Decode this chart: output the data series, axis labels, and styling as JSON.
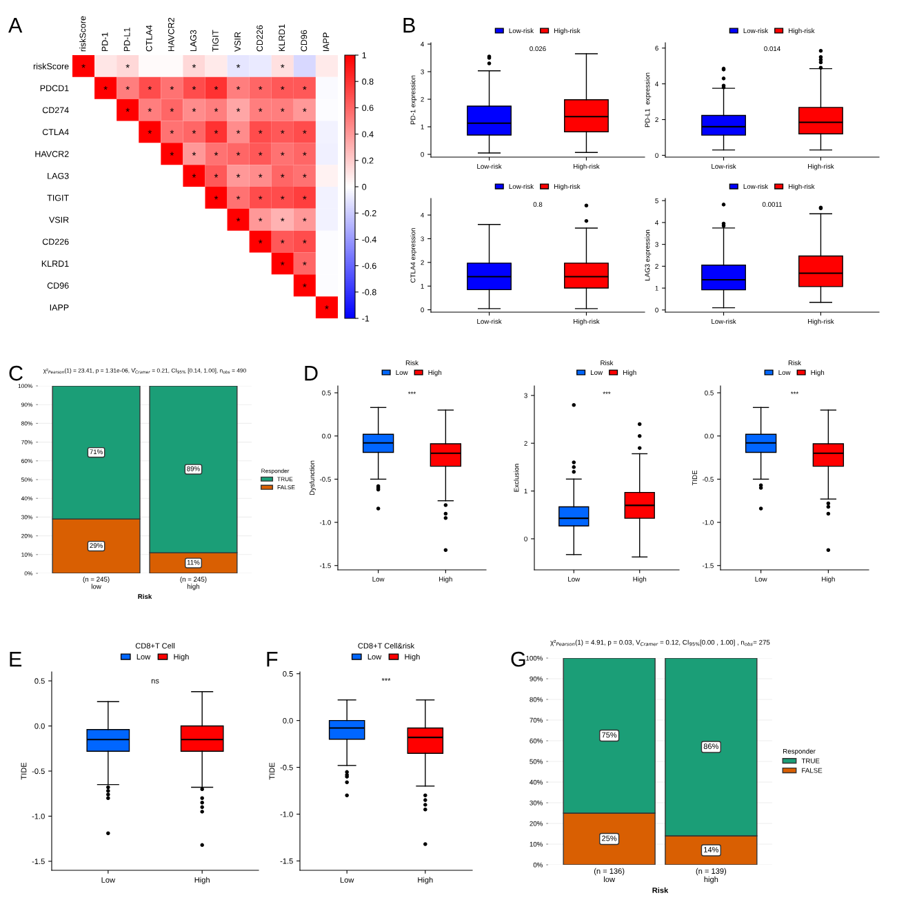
{
  "chart_data": [
    {
      "type": "heatmap",
      "title": "A",
      "categories": [
        "riskScore",
        "PD-1",
        "PD-L1",
        "CTLA4",
        "HAVCR2",
        "LAG3",
        "TIGIT",
        "VSIR",
        "CD226",
        "KLRD1",
        "CD96",
        "IAPP"
      ],
      "y_categories": [
        "riskScore",
        "PDCD1",
        "CD274",
        "CTLA4",
        "HAVCR2",
        "LAG3",
        "TIGIT",
        "VSIR",
        "CD226",
        "KLRD1",
        "CD96",
        "IAPP"
      ],
      "cells": [
        [
          1,
          0.1,
          0.15,
          0.02,
          0.02,
          0.15,
          0.08,
          -0.1,
          -0.08,
          0.12,
          -0.15,
          0.08
        ],
        [
          null,
          1,
          0.5,
          0.7,
          0.55,
          0.7,
          0.8,
          0.5,
          0.6,
          0.65,
          0.65,
          -0.02
        ],
        [
          null,
          null,
          1,
          0.5,
          0.6,
          0.45,
          0.5,
          0.35,
          0.5,
          0.5,
          0.4,
          -0.01
        ],
        [
          null,
          null,
          null,
          1,
          0.55,
          0.6,
          0.8,
          0.45,
          0.7,
          0.65,
          0.7,
          -0.05
        ],
        [
          null,
          null,
          null,
          null,
          1,
          0.4,
          0.55,
          0.6,
          0.65,
          0.55,
          0.6,
          -0.06
        ],
        [
          null,
          null,
          null,
          null,
          null,
          1,
          0.65,
          0.4,
          0.45,
          0.6,
          0.55,
          0.05
        ],
        [
          null,
          null,
          null,
          null,
          null,
          null,
          1,
          0.55,
          0.7,
          0.7,
          0.75,
          -0.05
        ],
        [
          null,
          null,
          null,
          null,
          null,
          null,
          null,
          1,
          0.4,
          0.3,
          0.4,
          -0.05
        ],
        [
          null,
          null,
          null,
          null,
          null,
          null,
          null,
          null,
          1,
          0.65,
          0.7,
          -0.01
        ],
        [
          null,
          null,
          null,
          null,
          null,
          null,
          null,
          null,
          null,
          1,
          0.6,
          -0.01
        ],
        [
          null,
          null,
          null,
          null,
          null,
          null,
          null,
          null,
          null,
          null,
          1,
          -0.01
        ],
        [
          null,
          null,
          null,
          null,
          null,
          null,
          null,
          null,
          null,
          null,
          null,
          1
        ]
      ],
      "cell_labels": [
        [
          "*",
          null,
          "*",
          null,
          null,
          "*",
          null,
          "*",
          null,
          "*",
          null,
          null
        ],
        [
          null,
          "*",
          "*",
          "*",
          "*",
          "*",
          "*",
          "*",
          "*",
          "*",
          "*",
          null
        ],
        [
          null,
          null,
          "*",
          "*",
          "*",
          "*",
          "*",
          "*",
          "*",
          "*",
          "*",
          null
        ],
        [
          null,
          null,
          null,
          "*",
          "*",
          "*",
          "*",
          "*",
          "*",
          "*",
          "*",
          null
        ],
        [
          null,
          null,
          null,
          null,
          "*",
          "*",
          "*",
          "*",
          "*",
          "*",
          "*",
          null
        ],
        [
          null,
          null,
          null,
          null,
          null,
          "*",
          "*",
          "*",
          "*",
          "*",
          "*",
          null
        ],
        [
          null,
          null,
          null,
          null,
          null,
          null,
          "*",
          "*",
          "*",
          "*",
          "*",
          null
        ],
        [
          null,
          null,
          null,
          null,
          null,
          null,
          null,
          "*",
          "*",
          "*",
          "*",
          null
        ],
        [
          null,
          null,
          null,
          null,
          null,
          null,
          null,
          null,
          "*",
          "*",
          "*",
          null
        ],
        [
          null,
          null,
          null,
          null,
          null,
          null,
          null,
          null,
          null,
          "*",
          "*",
          null
        ],
        [
          null,
          null,
          null,
          null,
          null,
          null,
          null,
          null,
          null,
          null,
          "*",
          null
        ],
        [
          null,
          null,
          null,
          null,
          null,
          null,
          null,
          null,
          null,
          null,
          null,
          "*"
        ]
      ],
      "clim": [
        -1,
        1
      ],
      "cticks": [
        -1,
        -0.8,
        -0.6,
        -0.4,
        -0.2,
        0,
        0.2,
        0.4,
        0.6,
        0.8,
        1
      ]
    },
    {
      "type": "box",
      "title": "B",
      "categories": [
        "Low-risk",
        "High-risk"
      ],
      "ylabel": "PD-1 expression",
      "legend": "top",
      "series": [
        {
          "name": "Low-risk",
          "color": "#0000ff",
          "boxes": [
            {
              "low": 0.05,
              "q1": 0.7,
              "median": 1.13,
              "q3": 1.75,
              "high": 3.03,
              "outliers": [
                3.3,
                3.5,
                3.55
              ]
            },
            null
          ]
        },
        {
          "name": "High-risk",
          "color": "#ff0000",
          "boxes": [
            null,
            {
              "low": 0.07,
              "q1": 0.82,
              "median": 1.37,
              "q3": 1.98,
              "high": 3.65
            }
          ]
        }
      ],
      "ylim": [
        -0.1,
        4.05
      ],
      "yticks": [
        0,
        1,
        2,
        3,
        4
      ],
      "annotations": [
        "0.026"
      ]
    },
    {
      "type": "box",
      "categories": [
        "Low-risk",
        "High-risk"
      ],
      "ylabel": "PD-L1  expression",
      "legend": "top",
      "series": [
        {
          "name": "Low-risk",
          "color": "#0000ff",
          "boxes": [
            {
              "low": 0.3,
              "q1": 1.13,
              "median": 1.6,
              "q3": 2.23,
              "high": 3.75,
              "outliers": [
                3.8,
                3.9,
                4.3,
                4.8,
                4.85
              ]
            },
            null
          ]
        },
        {
          "name": "High-risk",
          "color": "#ff0000",
          "boxes": [
            null,
            {
              "low": 0.3,
              "q1": 1.2,
              "median": 1.85,
              "q3": 2.68,
              "high": 4.85,
              "outliers": [
                4.9,
                5.2,
                5.35,
                5.5,
                5.85
              ]
            }
          ]
        }
      ],
      "ylim": [
        -0.1,
        6.3
      ],
      "yticks": [
        0,
        2,
        4,
        6
      ],
      "annotations": [
        "0.014"
      ]
    },
    {
      "type": "box",
      "categories": [
        "Low-risk",
        "High-risk"
      ],
      "ylabel": "CTLA4 expression",
      "legend": "top",
      "series": [
        {
          "name": "Low-risk",
          "color": "#0000ff",
          "boxes": [
            {
              "low": 0.05,
              "q1": 0.85,
              "median": 1.4,
              "q3": 1.97,
              "high": 3.6
            },
            null
          ]
        },
        {
          "name": "High-risk",
          "color": "#ff0000",
          "boxes": [
            null,
            {
              "low": 0.05,
              "q1": 0.92,
              "median": 1.4,
              "q3": 1.97,
              "high": 3.45,
              "outliers": [
                3.75,
                4.4
              ]
            }
          ]
        }
      ],
      "ylim": [
        -0.1,
        4.7
      ],
      "yticks": [
        0,
        1,
        2,
        3,
        4
      ],
      "annotations": [
        "0.8"
      ]
    },
    {
      "type": "box",
      "categories": [
        "Low-risk",
        "High-risk"
      ],
      "ylabel": "LAG3 expression",
      "legend": "top",
      "series": [
        {
          "name": "Low-risk",
          "color": "#0000ff",
          "boxes": [
            {
              "low": 0.1,
              "q1": 0.92,
              "median": 1.38,
              "q3": 2.05,
              "high": 3.75,
              "outliers": [
                3.85,
                3.95,
                4.82
              ]
            },
            null
          ]
        },
        {
          "name": "High-risk",
          "color": "#ff0000",
          "boxes": [
            null,
            {
              "low": 0.35,
              "q1": 1.07,
              "median": 1.68,
              "q3": 2.47,
              "high": 4.4,
              "outliers": [
                4.65,
                4.68
              ]
            }
          ]
        }
      ],
      "ylim": [
        -0.1,
        5.1
      ],
      "yticks": [
        0,
        1,
        2,
        3,
        4,
        5
      ],
      "annotations": [
        "0.0011"
      ]
    },
    {
      "type": "bar",
      "stacked": true,
      "title": "C",
      "subtitle": "χ²$_{Pearson}$(1) = 23.41, p = 1.31e-06, V̂$_{Cramer}$ = 0.21, CI$_{95%}$ [0.14, 1.00], n$_{obs}$ = 490",
      "categories": [
        "(n = 245)\nlow",
        "(n = 245)\nhigh"
      ],
      "xlabel": "Risk",
      "legend_title": "Responder",
      "legend": "right",
      "grid": "y",
      "series": [
        {
          "name": "FALSE",
          "color": "#d95f02",
          "values": [
            29,
            11
          ],
          "value_labels": [
            "29%",
            "11%"
          ]
        },
        {
          "name": "TRUE",
          "color": "#1b9e77",
          "values": [
            71,
            89
          ],
          "value_labels": [
            "71%",
            "89%"
          ]
        }
      ],
      "ylim": [
        0,
        100
      ],
      "yticks": [
        {
          "value": 0,
          "label": "0%"
        },
        {
          "value": 10,
          "label": "10%"
        },
        {
          "value": 20,
          "label": "20%"
        },
        {
          "value": 30,
          "label": "30%"
        },
        {
          "value": 40,
          "label": "40%"
        },
        {
          "value": 50,
          "label": "50%"
        },
        {
          "value": 60,
          "label": "60%"
        },
        {
          "value": 70,
          "label": "70%"
        },
        {
          "value": 80,
          "label": "80%"
        },
        {
          "value": 90,
          "label": "90%"
        },
        {
          "value": 100,
          "label": "100%"
        }
      ]
    },
    {
      "type": "box",
      "title": "D",
      "categories": [
        "Low",
        "High"
      ],
      "ylabel": "Dysfunction",
      "legend": "top",
      "legend_title": "Risk",
      "series": [
        {
          "name": "Low",
          "color": "#0066ff",
          "boxes": [
            {
              "low": -0.5,
              "q1": -0.19,
              "median": -0.08,
              "q3": 0.02,
              "high": 0.33,
              "outliers": [
                -0.58,
                -0.6,
                -0.62,
                -0.84
              ]
            },
            null
          ]
        },
        {
          "name": "High",
          "color": "#ff0000",
          "boxes": [
            null,
            {
              "low": -0.75,
              "q1": -0.35,
              "median": -0.2,
              "q3": -0.09,
              "high": 0.3,
              "outliers": [
                -0.8,
                -0.9,
                -0.95,
                -1.32
              ]
            }
          ]
        }
      ],
      "ylim": [
        -1.55,
        0.58
      ],
      "yticks": [
        {
          "value": -1.5,
          "label": "-1.5"
        },
        {
          "value": -1.0,
          "label": "-1.0"
        },
        {
          "value": -0.5,
          "label": "-0.5"
        },
        {
          "value": 0.0,
          "label": "0.0"
        },
        {
          "value": 0.5,
          "label": "0.5"
        }
      ],
      "annotations": [
        "***"
      ]
    },
    {
      "type": "box",
      "categories": [
        "Low",
        "High"
      ],
      "ylabel": "Exclusion",
      "legend": "top",
      "legend_title": "Risk",
      "series": [
        {
          "name": "Low",
          "color": "#0066ff",
          "boxes": [
            {
              "low": -0.33,
              "q1": 0.27,
              "median": 0.43,
              "q3": 0.67,
              "high": 1.25,
              "outliers": [
                1.4,
                1.5,
                1.6,
                2.8
              ]
            },
            null
          ]
        },
        {
          "name": "High",
          "color": "#ff0000",
          "boxes": [
            null,
            {
              "low": -0.38,
              "q1": 0.43,
              "median": 0.7,
              "q3": 0.97,
              "high": 1.78,
              "outliers": [
                1.9,
                2.15,
                2.4
              ]
            }
          ]
        }
      ],
      "ylim": [
        -0.65,
        3.2
      ],
      "yticks": [
        0,
        1,
        2,
        3
      ],
      "annotations": [
        "***"
      ]
    },
    {
      "type": "box",
      "categories": [
        "Low",
        "High"
      ],
      "ylabel": "TIDE",
      "legend": "top",
      "legend_title": "Risk",
      "series": [
        {
          "name": "Low",
          "color": "#0066ff",
          "boxes": [
            {
              "low": -0.5,
              "q1": -0.19,
              "median": -0.08,
              "q3": 0.02,
              "high": 0.33,
              "outliers": [
                -0.57,
                -0.6,
                -0.84
              ]
            },
            null
          ]
        },
        {
          "name": "High",
          "color": "#ff0000",
          "boxes": [
            null,
            {
              "low": -0.73,
              "q1": -0.35,
              "median": -0.2,
              "q3": -0.09,
              "high": 0.3,
              "outliers": [
                -0.78,
                -0.82,
                -0.9,
                -1.32
              ]
            }
          ]
        }
      ],
      "ylim": [
        -1.55,
        0.58
      ],
      "yticks": [
        {
          "value": -1.5,
          "label": "-1.5"
        },
        {
          "value": -1.0,
          "label": "-1.0"
        },
        {
          "value": -0.5,
          "label": "-0.5"
        },
        {
          "value": 0.0,
          "label": "0.0"
        },
        {
          "value": 0.5,
          "label": "0.5"
        }
      ],
      "annotations": [
        "***"
      ]
    },
    {
      "type": "box",
      "title": "E",
      "categories": [
        "Low",
        "High"
      ],
      "ylabel": "TIDE",
      "legend": "top",
      "legend_title": "CD8+T Cell",
      "series": [
        {
          "name": "Low",
          "color": "#0066ff",
          "boxes": [
            {
              "low": -0.65,
              "q1": -0.28,
              "median": -0.15,
              "q3": -0.04,
              "high": 0.27,
              "outliers": [
                -0.68,
                -0.72,
                -0.76,
                -0.8,
                -1.19
              ]
            },
            null
          ]
        },
        {
          "name": "High",
          "color": "#ff0000",
          "boxes": [
            null,
            {
              "low": -0.68,
              "q1": -0.28,
              "median": -0.15,
              "q3": 0.0,
              "high": 0.38,
              "outliers": [
                -0.7,
                -0.8,
                -0.85,
                -0.9,
                -0.95,
                -1.32
              ]
            }
          ]
        }
      ],
      "ylim": [
        -1.6,
        0.6
      ],
      "yticks": [
        {
          "value": -1.5,
          "label": "-1.5"
        },
        {
          "value": -1.0,
          "label": "-1.0"
        },
        {
          "value": -0.5,
          "label": "-0.5"
        },
        {
          "value": 0.0,
          "label": "0.0"
        },
        {
          "value": 0.5,
          "label": "0.5"
        }
      ],
      "annotations": [
        "ns"
      ]
    },
    {
      "type": "box",
      "title": "F",
      "categories": [
        "Low",
        "High"
      ],
      "ylabel": "TIDE",
      "legend": "top",
      "legend_title": "CD8+T Cell&risk",
      "series": [
        {
          "name": "Low",
          "color": "#0066ff",
          "boxes": [
            {
              "low": -0.48,
              "q1": -0.2,
              "median": -0.08,
              "q3": 0.0,
              "high": 0.22,
              "outliers": [
                -0.55,
                -0.58,
                -0.6,
                -0.66,
                -0.8
              ]
            },
            null
          ]
        },
        {
          "name": "High",
          "color": "#ff0000",
          "boxes": [
            null,
            {
              "low": -0.7,
              "q1": -0.35,
              "median": -0.18,
              "q3": -0.08,
              "high": 0.22,
              "outliers": [
                -0.8,
                -0.85,
                -0.9,
                -0.95,
                -1.32
              ]
            }
          ]
        }
      ],
      "ylim": [
        -1.6,
        0.52
      ],
      "yticks": [
        {
          "value": -1.5,
          "label": "-1.5"
        },
        {
          "value": -1.0,
          "label": "-1.0"
        },
        {
          "value": -0.5,
          "label": "-0.5"
        },
        {
          "value": 0.0,
          "label": "0.0"
        },
        {
          "value": 0.5,
          "label": "0.5"
        }
      ],
      "annotations": [
        "***"
      ]
    },
    {
      "type": "bar",
      "stacked": true,
      "title": "G",
      "subtitle": "χ²$_{Pearson}$(1) = 4.91, p = 0.03, V$_{Cramer}$ = 0.12, CI$_{95%}$[0.00 , 1.00] , n$_{obs}$= 275",
      "categories": [
        "(n = 136)\nlow",
        "(n = 139)\nhigh"
      ],
      "xlabel": "Risk",
      "legend_title": "Responder",
      "legend": "right",
      "grid": "y",
      "series": [
        {
          "name": "FALSE",
          "color": "#d95f02",
          "values": [
            25,
            14
          ],
          "value_labels": [
            "25%",
            "14%"
          ]
        },
        {
          "name": "TRUE",
          "color": "#1b9e77",
          "values": [
            75,
            86
          ],
          "value_labels": [
            "75%",
            "86%"
          ]
        }
      ],
      "ylim": [
        0,
        100
      ],
      "yticks": [
        {
          "value": 0,
          "label": "0%"
        },
        {
          "value": 10,
          "label": "10%"
        },
        {
          "value": 20,
          "label": "20%"
        },
        {
          "value": 30,
          "label": "30%"
        },
        {
          "value": 40,
          "label": "40%"
        },
        {
          "value": 50,
          "label": "50%"
        },
        {
          "value": 60,
          "label": "60%"
        },
        {
          "value": 70,
          "label": "70%"
        },
        {
          "value": 80,
          "label": "80%"
        },
        {
          "value": 90,
          "label": "90%"
        },
        {
          "value": 100,
          "label": "100%"
        }
      ]
    }
  ]
}
